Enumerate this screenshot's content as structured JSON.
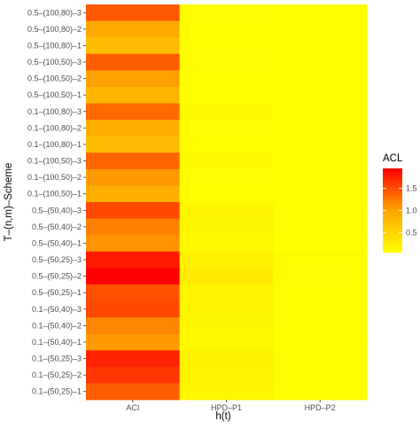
{
  "chart_data": {
    "type": "heatmap",
    "xlabel": "h(t)",
    "ylabel": "T–(n,m)–Scheme",
    "x_categories": [
      "ACI",
      "HPD–P1",
      "HPD–P2"
    ],
    "y_categories": [
      "0.5–(100,80)–3",
      "0.5–(100,80)–2",
      "0.5–(100,80)–1",
      "0.5–(100,50)–3",
      "0.5–(100,50)–2",
      "0.5–(100,50)–1",
      "0.1–(100,80)–3",
      "0.1–(100,80)–2",
      "0.1–(100,80)–1",
      "0.1–(100,50)–3",
      "0.1–(100,50)–2",
      "0.1–(100,50)–1",
      "0.5–(50,40)–3",
      "0.5–(50,40)–2",
      "0.5–(50,40)–1",
      "0.5–(50,25)–3",
      "0.5–(50,25)–2",
      "0.5–(50,25)–1",
      "0.1–(50,40)–3",
      "0.1–(50,40)–2",
      "0.1–(50,40)–1",
      "0.1–(50,25)–3",
      "0.1–(50,25)–2",
      "0.1–(50,25)–1"
    ],
    "values": [
      [
        1.3,
        0.08,
        0.05
      ],
      [
        0.7,
        0.07,
        0.05
      ],
      [
        0.55,
        0.06,
        0.05
      ],
      [
        1.25,
        0.08,
        0.05
      ],
      [
        0.75,
        0.07,
        0.05
      ],
      [
        0.6,
        0.06,
        0.05
      ],
      [
        1.15,
        0.09,
        0.05
      ],
      [
        0.65,
        0.08,
        0.05
      ],
      [
        0.55,
        0.07,
        0.05
      ],
      [
        1.2,
        0.09,
        0.05
      ],
      [
        0.8,
        0.08,
        0.05
      ],
      [
        0.65,
        0.07,
        0.05
      ],
      [
        1.4,
        0.12,
        0.06
      ],
      [
        1.0,
        0.11,
        0.06
      ],
      [
        0.85,
        0.1,
        0.05
      ],
      [
        1.75,
        0.16,
        0.07
      ],
      [
        1.95,
        0.2,
        0.08
      ],
      [
        1.35,
        0.14,
        0.06
      ],
      [
        1.4,
        0.12,
        0.06
      ],
      [
        0.95,
        0.11,
        0.06
      ],
      [
        0.8,
        0.1,
        0.05
      ],
      [
        1.7,
        0.15,
        0.07
      ],
      [
        1.55,
        0.14,
        0.07
      ],
      [
        1.25,
        0.12,
        0.06
      ]
    ],
    "legend": {
      "title": "ACL",
      "ticks": [
        0.5,
        1.0,
        1.5
      ],
      "tick_labels": [
        "0.5",
        "1.0",
        "1.5"
      ],
      "range": [
        0.05,
        1.95
      ],
      "low_color": "#ffff00",
      "high_color": "#ff0000"
    },
    "grid": false,
    "panel_background": "#ebebeb"
  }
}
